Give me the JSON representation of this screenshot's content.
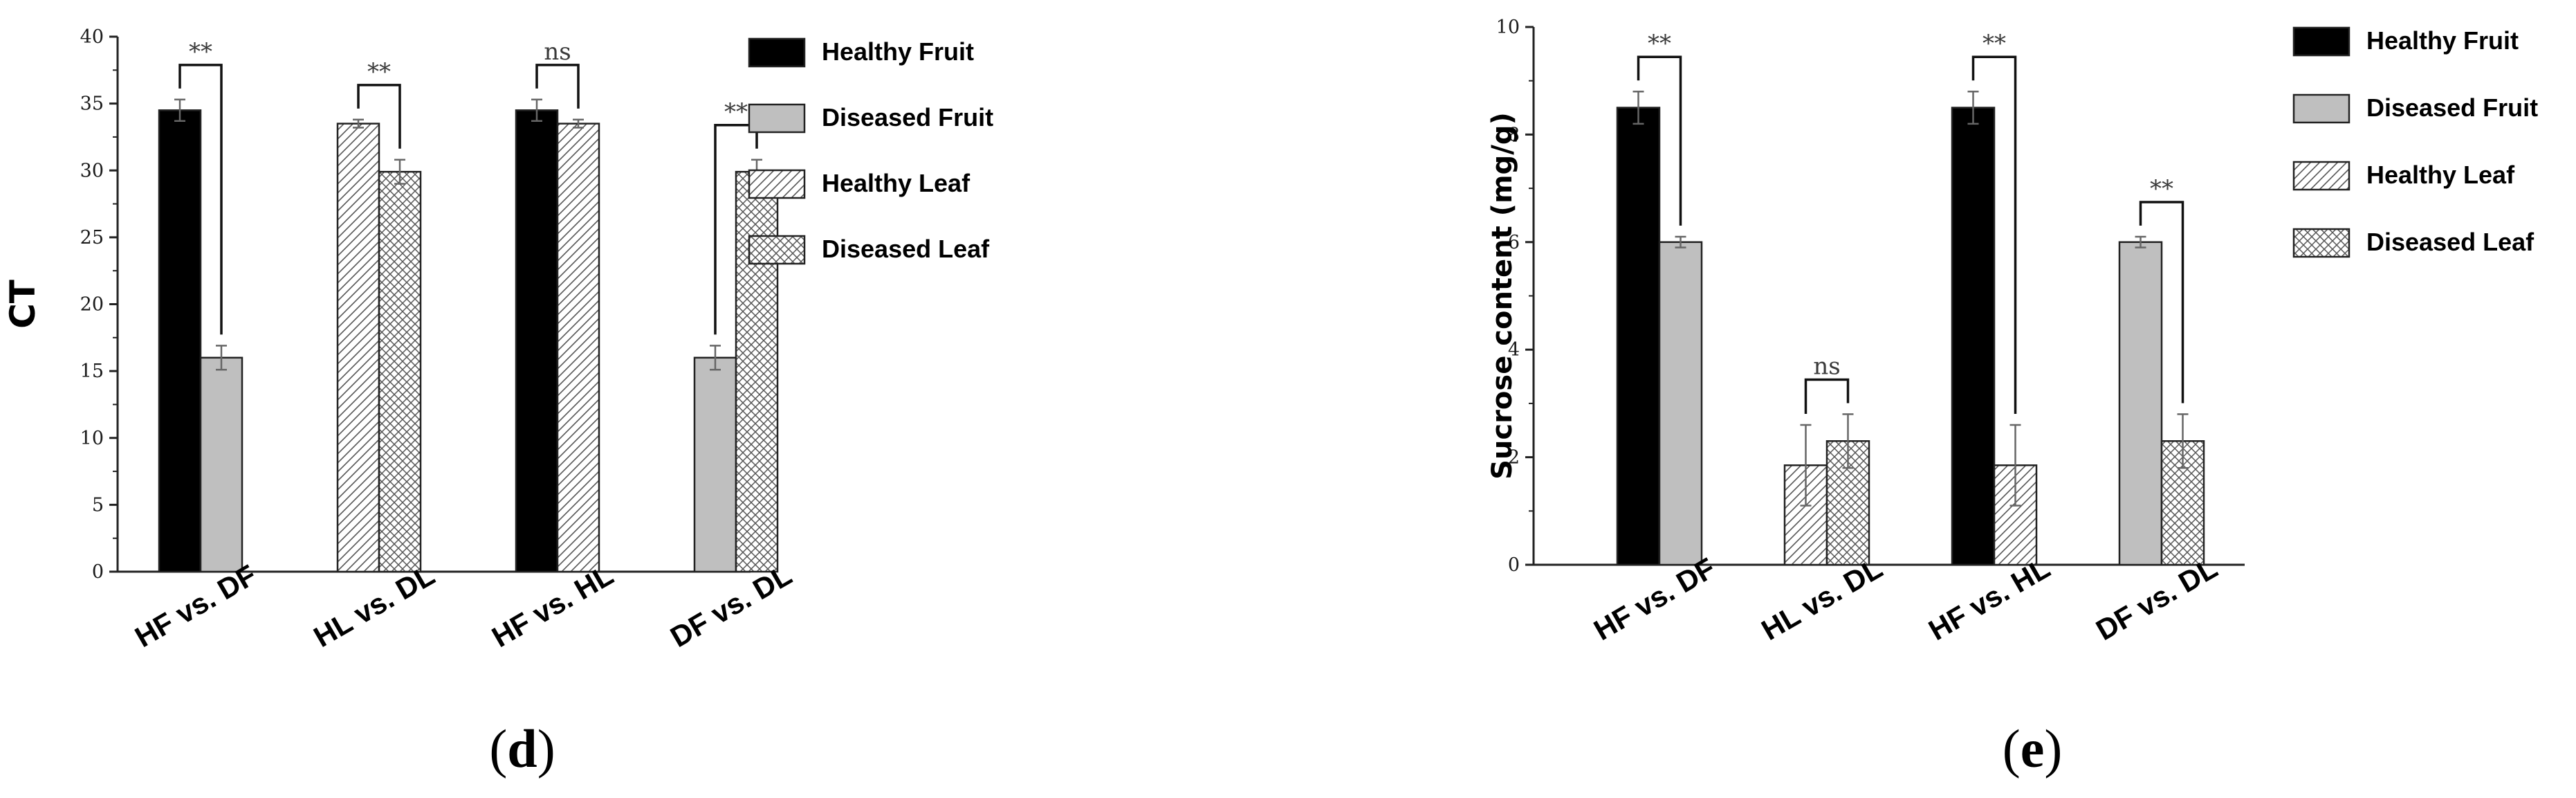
{
  "colors": {
    "bar_stroke": "#222222",
    "bracket": "#111111"
  },
  "fill_styles": {
    "healthy_fruit": "solid-black",
    "diseased_fruit": "solid-grey",
    "healthy_leaf": "diagonal-hatch",
    "diseased_leaf": "crosshatch"
  },
  "chart_data": [
    {
      "id": "d",
      "type": "bar",
      "panel_label": "d",
      "ylabel": "CT",
      "xlabel": "",
      "ylim": [
        0,
        40
      ],
      "yticks": [
        0,
        5,
        10,
        15,
        20,
        25,
        30,
        35,
        40
      ],
      "categories": [
        "HF vs. DF",
        "HL vs. DL",
        "HF vs. HL",
        "DF vs. DL"
      ],
      "legend": [
        "Healthy Fruit",
        "Diseased Fruit",
        "Healthy Leaf",
        "Diseased Leaf"
      ],
      "groups": [
        {
          "category": "HF vs. DF",
          "significance": "**",
          "bars": [
            {
              "series": "Healthy Fruit",
              "value": 34.5,
              "error": 0.8
            },
            {
              "series": "Diseased Fruit",
              "value": 16.0,
              "error": 0.9
            }
          ]
        },
        {
          "category": "HL vs. DL",
          "significance": "**",
          "bars": [
            {
              "series": "Healthy Leaf",
              "value": 33.5,
              "error": 0.3
            },
            {
              "series": "Diseased Leaf",
              "value": 29.9,
              "error": 0.9
            }
          ]
        },
        {
          "category": "HF vs. HL",
          "significance": "ns",
          "bars": [
            {
              "series": "Healthy Fruit",
              "value": 34.5,
              "error": 0.8
            },
            {
              "series": "Healthy Leaf",
              "value": 33.5,
              "error": 0.3
            }
          ]
        },
        {
          "category": "DF vs. DL",
          "significance": "**",
          "bars": [
            {
              "series": "Diseased Fruit",
              "value": 16.0,
              "error": 0.9
            },
            {
              "series": "Diseased Leaf",
              "value": 29.9,
              "error": 0.9
            }
          ]
        }
      ]
    },
    {
      "id": "e",
      "type": "bar",
      "panel_label": "e",
      "ylabel": "Sucrose content (mg/g)",
      "xlabel": "",
      "ylim": [
        0,
        10
      ],
      "yticks": [
        0,
        2,
        4,
        6,
        8,
        10
      ],
      "categories": [
        "HF vs. DF",
        "HL vs. DL",
        "HF vs. HL",
        "DF vs. DL"
      ],
      "legend": [
        "Healthy Fruit",
        "Diseased Fruit",
        "Healthy Leaf",
        "Diseased Leaf"
      ],
      "groups": [
        {
          "category": "HF vs. DF",
          "significance": "**",
          "bars": [
            {
              "series": "Healthy Fruit",
              "value": 8.5,
              "error": 0.3
            },
            {
              "series": "Diseased Fruit",
              "value": 6.0,
              "error": 0.1
            }
          ]
        },
        {
          "category": "HL vs. DL",
          "significance": "ns",
          "bars": [
            {
              "series": "Healthy Leaf",
              "value": 1.85,
              "error": 0.75
            },
            {
              "series": "Diseased Leaf",
              "value": 2.3,
              "error": 0.5
            }
          ]
        },
        {
          "category": "HF vs. HL",
          "significance": "**",
          "bars": [
            {
              "series": "Healthy Fruit",
              "value": 8.5,
              "error": 0.3
            },
            {
              "series": "Healthy Leaf",
              "value": 1.85,
              "error": 0.75
            }
          ]
        },
        {
          "category": "DF vs. DL",
          "significance": "**",
          "bars": [
            {
              "series": "Diseased Fruit",
              "value": 6.0,
              "error": 0.1
            },
            {
              "series": "Diseased Leaf",
              "value": 2.3,
              "error": 0.5
            }
          ]
        }
      ]
    }
  ]
}
